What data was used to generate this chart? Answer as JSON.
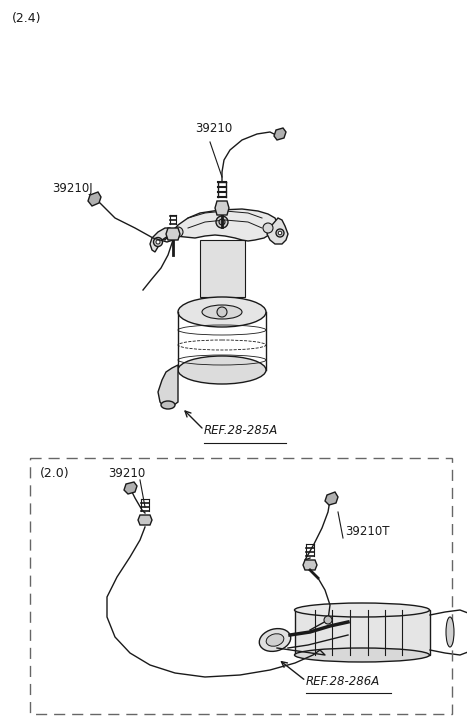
{
  "bg_color": "#ffffff",
  "line_color": "#1a1a1a",
  "text_color": "#1a1a1a",
  "dashed_box_color": "#666666",
  "title_24": "(2.4)",
  "title_20": "(2.0)",
  "label_39210": "39210",
  "label_39210J": "39210J",
  "label_39210T": "39210T",
  "label_ref285": "REF.28-285A",
  "label_ref286": "REF.28-286A",
  "fig_width": 4.67,
  "fig_height": 7.27,
  "dpi": 100
}
